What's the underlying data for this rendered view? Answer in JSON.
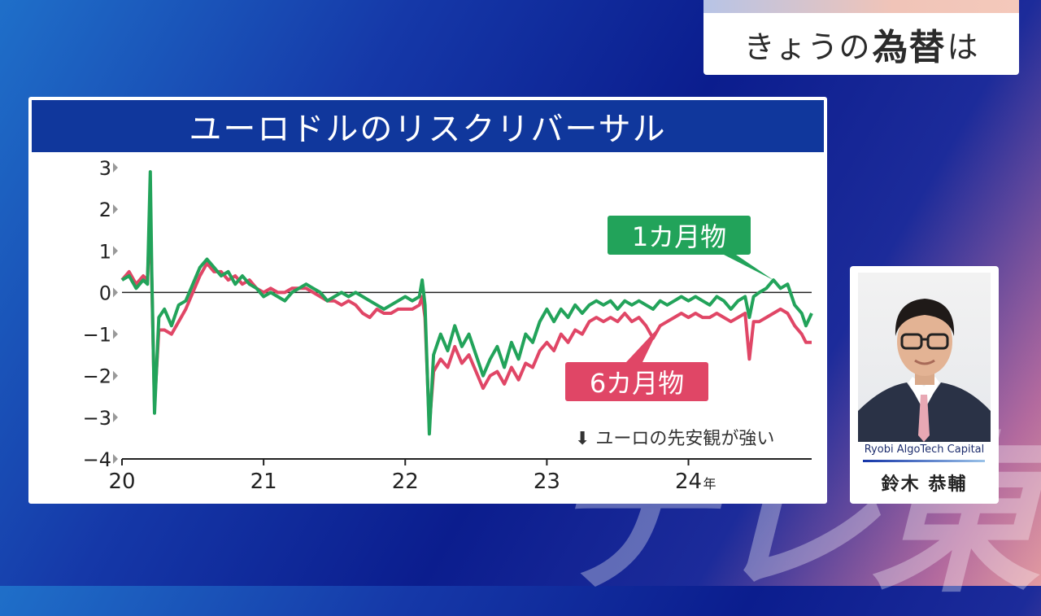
{
  "watermark": "テレ東",
  "header": {
    "prefix": "きょうの",
    "emph": "為替",
    "suffix": "は"
  },
  "chart_data": {
    "type": "line",
    "title": "ユーロドルのリスクリバーサル",
    "ylim": [
      -4,
      3
    ],
    "y_ticks": [
      "3",
      "2",
      "1",
      "0",
      "−1",
      "−2",
      "−3",
      "−4"
    ],
    "xlim": [
      2020.0,
      2024.87
    ],
    "x_ticks": [
      "20",
      "21",
      "22",
      "23",
      "24"
    ],
    "x_unit": "年",
    "annotation": "⬇ ユーロの先安観が強い",
    "series": [
      {
        "name": "1カ月物",
        "color": "#22a35a",
        "points": [
          [
            2020.0,
            0.3
          ],
          [
            2020.05,
            0.4
          ],
          [
            2020.1,
            0.1
          ],
          [
            2020.15,
            0.3
          ],
          [
            2020.18,
            0.2
          ],
          [
            2020.2,
            2.9
          ],
          [
            2020.21,
            0.5
          ],
          [
            2020.23,
            -2.9
          ],
          [
            2020.26,
            -0.6
          ],
          [
            2020.3,
            -0.4
          ],
          [
            2020.35,
            -0.8
          ],
          [
            2020.4,
            -0.3
          ],
          [
            2020.45,
            -0.2
          ],
          [
            2020.5,
            0.2
          ],
          [
            2020.55,
            0.6
          ],
          [
            2020.6,
            0.8
          ],
          [
            2020.65,
            0.6
          ],
          [
            2020.7,
            0.4
          ],
          [
            2020.75,
            0.5
          ],
          [
            2020.8,
            0.2
          ],
          [
            2020.85,
            0.4
          ],
          [
            2020.9,
            0.2
          ],
          [
            2020.95,
            0.1
          ],
          [
            2021.0,
            -0.1
          ],
          [
            2021.05,
            0.0
          ],
          [
            2021.1,
            -0.1
          ],
          [
            2021.15,
            -0.2
          ],
          [
            2021.2,
            0.0
          ],
          [
            2021.25,
            0.1
          ],
          [
            2021.3,
            0.2
          ],
          [
            2021.35,
            0.1
          ],
          [
            2021.4,
            0.0
          ],
          [
            2021.45,
            -0.2
          ],
          [
            2021.5,
            -0.1
          ],
          [
            2021.55,
            0.0
          ],
          [
            2021.6,
            -0.1
          ],
          [
            2021.65,
            0.0
          ],
          [
            2021.7,
            -0.1
          ],
          [
            2021.75,
            -0.2
          ],
          [
            2021.8,
            -0.3
          ],
          [
            2021.85,
            -0.4
          ],
          [
            2021.9,
            -0.3
          ],
          [
            2021.95,
            -0.2
          ],
          [
            2022.0,
            -0.1
          ],
          [
            2022.05,
            -0.2
          ],
          [
            2022.1,
            -0.1
          ],
          [
            2022.12,
            0.3
          ],
          [
            2022.14,
            -0.3
          ],
          [
            2022.17,
            -3.4
          ],
          [
            2022.2,
            -1.5
          ],
          [
            2022.25,
            -1.0
          ],
          [
            2022.3,
            -1.4
          ],
          [
            2022.35,
            -0.8
          ],
          [
            2022.4,
            -1.3
          ],
          [
            2022.45,
            -1.0
          ],
          [
            2022.5,
            -1.5
          ],
          [
            2022.55,
            -2.0
          ],
          [
            2022.6,
            -1.6
          ],
          [
            2022.65,
            -1.3
          ],
          [
            2022.7,
            -1.8
          ],
          [
            2022.75,
            -1.2
          ],
          [
            2022.8,
            -1.6
          ],
          [
            2022.85,
            -1.0
          ],
          [
            2022.9,
            -1.2
          ],
          [
            2022.95,
            -0.7
          ],
          [
            2023.0,
            -0.4
          ],
          [
            2023.05,
            -0.7
          ],
          [
            2023.1,
            -0.4
          ],
          [
            2023.15,
            -0.6
          ],
          [
            2023.2,
            -0.3
          ],
          [
            2023.25,
            -0.5
          ],
          [
            2023.3,
            -0.3
          ],
          [
            2023.35,
            -0.2
          ],
          [
            2023.4,
            -0.3
          ],
          [
            2023.45,
            -0.2
          ],
          [
            2023.5,
            -0.4
          ],
          [
            2023.55,
            -0.2
          ],
          [
            2023.6,
            -0.3
          ],
          [
            2023.65,
            -0.2
          ],
          [
            2023.7,
            -0.3
          ],
          [
            2023.75,
            -0.4
          ],
          [
            2023.8,
            -0.2
          ],
          [
            2023.85,
            -0.3
          ],
          [
            2023.9,
            -0.2
          ],
          [
            2023.95,
            -0.1
          ],
          [
            2024.0,
            -0.2
          ],
          [
            2024.05,
            -0.1
          ],
          [
            2024.1,
            -0.2
          ],
          [
            2024.15,
            -0.3
          ],
          [
            2024.2,
            -0.1
          ],
          [
            2024.25,
            -0.2
          ],
          [
            2024.3,
            -0.4
          ],
          [
            2024.35,
            -0.2
          ],
          [
            2024.4,
            -0.1
          ],
          [
            2024.43,
            -0.6
          ],
          [
            2024.46,
            -0.1
          ],
          [
            2024.5,
            0.0
          ],
          [
            2024.55,
            0.1
          ],
          [
            2024.6,
            0.3
          ],
          [
            2024.65,
            0.1
          ],
          [
            2024.7,
            0.2
          ],
          [
            2024.75,
            -0.3
          ],
          [
            2024.8,
            -0.5
          ],
          [
            2024.83,
            -0.8
          ],
          [
            2024.87,
            -0.5
          ]
        ]
      },
      {
        "name": "6カ月物",
        "color": "#e04666",
        "points": [
          [
            2020.0,
            0.3
          ],
          [
            2020.05,
            0.5
          ],
          [
            2020.1,
            0.2
          ],
          [
            2020.15,
            0.4
          ],
          [
            2020.18,
            0.3
          ],
          [
            2020.2,
            2.0
          ],
          [
            2020.21,
            0.3
          ],
          [
            2020.23,
            -2.7
          ],
          [
            2020.26,
            -0.9
          ],
          [
            2020.3,
            -0.9
          ],
          [
            2020.35,
            -1.0
          ],
          [
            2020.4,
            -0.7
          ],
          [
            2020.45,
            -0.4
          ],
          [
            2020.5,
            0.0
          ],
          [
            2020.55,
            0.4
          ],
          [
            2020.6,
            0.7
          ],
          [
            2020.65,
            0.5
          ],
          [
            2020.7,
            0.5
          ],
          [
            2020.75,
            0.3
          ],
          [
            2020.8,
            0.4
          ],
          [
            2020.85,
            0.2
          ],
          [
            2020.9,
            0.3
          ],
          [
            2020.95,
            0.1
          ],
          [
            2021.0,
            0.0
          ],
          [
            2021.05,
            0.1
          ],
          [
            2021.1,
            0.0
          ],
          [
            2021.15,
            0.0
          ],
          [
            2021.2,
            0.1
          ],
          [
            2021.25,
            0.1
          ],
          [
            2021.3,
            0.1
          ],
          [
            2021.35,
            0.0
          ],
          [
            2021.4,
            -0.1
          ],
          [
            2021.45,
            -0.2
          ],
          [
            2021.5,
            -0.2
          ],
          [
            2021.55,
            -0.3
          ],
          [
            2021.6,
            -0.2
          ],
          [
            2021.65,
            -0.3
          ],
          [
            2021.7,
            -0.5
          ],
          [
            2021.75,
            -0.6
          ],
          [
            2021.8,
            -0.4
          ],
          [
            2021.85,
            -0.5
          ],
          [
            2021.9,
            -0.5
          ],
          [
            2021.95,
            -0.4
          ],
          [
            2022.0,
            -0.4
          ],
          [
            2022.05,
            -0.4
          ],
          [
            2022.1,
            -0.3
          ],
          [
            2022.12,
            -0.1
          ],
          [
            2022.14,
            -0.6
          ],
          [
            2022.17,
            -3.2
          ],
          [
            2022.2,
            -1.9
          ],
          [
            2022.25,
            -1.6
          ],
          [
            2022.3,
            -1.8
          ],
          [
            2022.35,
            -1.3
          ],
          [
            2022.4,
            -1.7
          ],
          [
            2022.45,
            -1.5
          ],
          [
            2022.5,
            -1.9
          ],
          [
            2022.55,
            -2.3
          ],
          [
            2022.6,
            -2.0
          ],
          [
            2022.65,
            -1.9
          ],
          [
            2022.7,
            -2.2
          ],
          [
            2022.75,
            -1.8
          ],
          [
            2022.8,
            -2.1
          ],
          [
            2022.85,
            -1.7
          ],
          [
            2022.9,
            -1.8
          ],
          [
            2022.95,
            -1.4
          ],
          [
            2023.0,
            -1.2
          ],
          [
            2023.05,
            -1.4
          ],
          [
            2023.1,
            -1.0
          ],
          [
            2023.15,
            -1.2
          ],
          [
            2023.2,
            -0.9
          ],
          [
            2023.25,
            -1.0
          ],
          [
            2023.3,
            -0.7
          ],
          [
            2023.35,
            -0.6
          ],
          [
            2023.4,
            -0.7
          ],
          [
            2023.45,
            -0.6
          ],
          [
            2023.5,
            -0.7
          ],
          [
            2023.55,
            -0.5
          ],
          [
            2023.6,
            -0.7
          ],
          [
            2023.65,
            -0.6
          ],
          [
            2023.7,
            -0.8
          ],
          [
            2023.75,
            -1.1
          ],
          [
            2023.8,
            -0.8
          ],
          [
            2023.85,
            -0.7
          ],
          [
            2023.9,
            -0.6
          ],
          [
            2023.95,
            -0.5
          ],
          [
            2024.0,
            -0.6
          ],
          [
            2024.05,
            -0.5
          ],
          [
            2024.1,
            -0.6
          ],
          [
            2024.15,
            -0.6
          ],
          [
            2024.2,
            -0.5
          ],
          [
            2024.25,
            -0.6
          ],
          [
            2024.3,
            -0.7
          ],
          [
            2024.35,
            -0.6
          ],
          [
            2024.4,
            -0.5
          ],
          [
            2024.43,
            -1.6
          ],
          [
            2024.46,
            -0.7
          ],
          [
            2024.5,
            -0.7
          ],
          [
            2024.55,
            -0.6
          ],
          [
            2024.6,
            -0.5
          ],
          [
            2024.65,
            -0.4
          ],
          [
            2024.7,
            -0.5
          ],
          [
            2024.75,
            -0.8
          ],
          [
            2024.8,
            -1.0
          ],
          [
            2024.83,
            -1.2
          ],
          [
            2024.87,
            -1.2
          ]
        ]
      }
    ]
  },
  "presenter": {
    "company": "Ryobi AlgoTech Capital",
    "name": "鈴木 恭輔"
  }
}
